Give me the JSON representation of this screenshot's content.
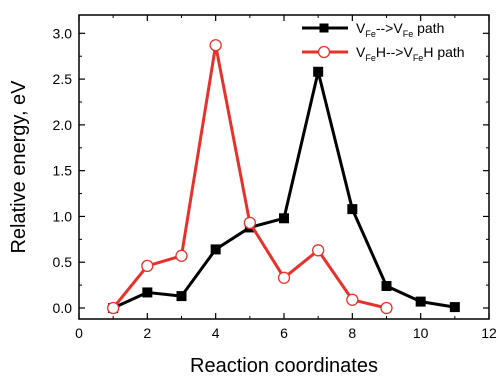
{
  "chart_data": {
    "type": "line",
    "xlabel": "Reaction coordinates",
    "ylabel": "Relative energy, eV",
    "xlim": [
      0,
      12
    ],
    "ylim": [
      -0.12,
      3.2
    ],
    "xticks": [
      0,
      2,
      4,
      6,
      8,
      10,
      12
    ],
    "yticks": [
      0.0,
      0.5,
      1.0,
      1.5,
      2.0,
      2.5,
      3.0
    ],
    "xtick_labels": [
      "0",
      "2",
      "4",
      "6",
      "8",
      "10",
      "12"
    ],
    "ytick_labels": [
      "0.0",
      "0.5",
      "1.0",
      "1.5",
      "2.0",
      "2.5",
      "3.0"
    ],
    "grid": false,
    "legend_position": "top-right",
    "series": [
      {
        "legend": {
          "pre": "V",
          "sub1": "Fe",
          "mid": "-->V",
          "sub2": "Fe",
          "post": " path"
        },
        "color": "#000000",
        "marker": "filled-square",
        "x": [
          1,
          2,
          3,
          4,
          5,
          6,
          7,
          8,
          9,
          10,
          11
        ],
        "y": [
          0.0,
          0.17,
          0.13,
          0.64,
          0.88,
          0.98,
          2.58,
          1.08,
          0.24,
          0.07,
          0.01
        ]
      },
      {
        "legend": {
          "pre": "V",
          "sub1": "Fe",
          "mid": "H-->V",
          "sub2": "Fe",
          "post": "H path"
        },
        "color": "#e8312a",
        "marker": "open-circle",
        "x": [
          1,
          2,
          3,
          4,
          5,
          6,
          7,
          8,
          9
        ],
        "y": [
          0.0,
          0.46,
          0.57,
          2.87,
          0.93,
          0.33,
          0.63,
          0.09,
          0.0
        ]
      }
    ]
  }
}
